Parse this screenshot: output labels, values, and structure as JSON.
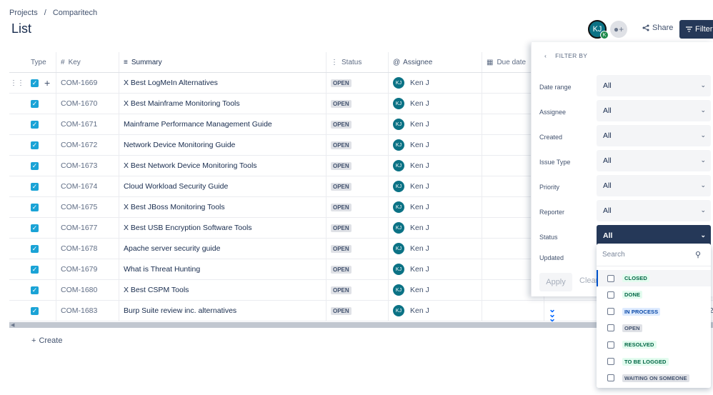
{
  "breadcrumb": {
    "projects": "Projects",
    "separator": "/",
    "project": "Comparitech"
  },
  "page_title": "List",
  "header": {
    "avatar_initials": "KJ",
    "avatar_badge": "K",
    "share_label": "Share",
    "filter_label": "Filter"
  },
  "columns": {
    "type": "Type",
    "key": "Key",
    "summary": "Summary",
    "status": "Status",
    "assignee": "Assignee",
    "due_date": "Due date"
  },
  "rows": [
    {
      "key": "COM-1669",
      "summary": "X Best LogMeIn Alternatives",
      "status": "OPEN",
      "assignee_initials": "KJ",
      "assignee": "Ken J"
    },
    {
      "key": "COM-1670",
      "summary": "X Best Mainframe Monitoring Tools",
      "status": "OPEN",
      "assignee_initials": "KJ",
      "assignee": "Ken J"
    },
    {
      "key": "COM-1671",
      "summary": "Mainframe Performance Management Guide",
      "status": "OPEN",
      "assignee_initials": "KJ",
      "assignee": "Ken J"
    },
    {
      "key": "COM-1672",
      "summary": "Network Device Monitoring Guide",
      "status": "OPEN",
      "assignee_initials": "KJ",
      "assignee": "Ken J"
    },
    {
      "key": "COM-1673",
      "summary": "X Best Network Device Monitoring Tools",
      "status": "OPEN",
      "assignee_initials": "KJ",
      "assignee": "Ken J"
    },
    {
      "key": "COM-1674",
      "summary": "Cloud Workload Security Guide",
      "status": "OPEN",
      "assignee_initials": "KJ",
      "assignee": "Ken J"
    },
    {
      "key": "COM-1675",
      "summary": "X Best JBoss Monitoring Tools",
      "status": "OPEN",
      "assignee_initials": "KJ",
      "assignee": "Ken J"
    },
    {
      "key": "COM-1677",
      "summary": "X Best USB Encryption Software Tools",
      "status": "OPEN",
      "assignee_initials": "KJ",
      "assignee": "Ken J"
    },
    {
      "key": "COM-1678",
      "summary": "Apache server security guide",
      "status": "OPEN",
      "assignee_initials": "KJ",
      "assignee": "Ken J"
    },
    {
      "key": "COM-1679",
      "summary": "What is Threat Hunting",
      "status": "OPEN",
      "assignee_initials": "KJ",
      "assignee": "Ken J"
    },
    {
      "key": "COM-1680",
      "summary": "X Best CSPM Tools",
      "status": "OPEN",
      "assignee_initials": "KJ",
      "assignee": "Ken J"
    },
    {
      "key": "COM-1683",
      "summary": "Burp Suite review inc. alternatives",
      "status": "OPEN",
      "assignee_initials": "KJ",
      "assignee": "Ken J"
    }
  ],
  "last_row_cut_text": "2",
  "create_label": "Create",
  "filter_panel": {
    "title": "FILTER BY",
    "filters": [
      {
        "label": "Date range",
        "value": "All"
      },
      {
        "label": "Assignee",
        "value": "All"
      },
      {
        "label": "Created",
        "value": "All"
      },
      {
        "label": "Issue Type",
        "value": "All"
      },
      {
        "label": "Priority",
        "value": "All"
      },
      {
        "label": "Reporter",
        "value": "All"
      },
      {
        "label": "Status",
        "value": "All"
      }
    ],
    "updated_label": "Updated",
    "apply_label": "Apply",
    "clear_label": "Clear"
  },
  "status_dropdown": {
    "search_placeholder": "Search",
    "options": [
      {
        "label": "CLOSED",
        "tone": "green"
      },
      {
        "label": "DONE",
        "tone": "green"
      },
      {
        "label": "IN PROCESS",
        "tone": "blue"
      },
      {
        "label": "OPEN",
        "tone": "gray"
      },
      {
        "label": "RESOLVED",
        "tone": "green"
      },
      {
        "label": "TO BE LOGGED",
        "tone": "green"
      },
      {
        "label": "WAITING ON SOMEONE",
        "tone": "gray"
      }
    ]
  }
}
